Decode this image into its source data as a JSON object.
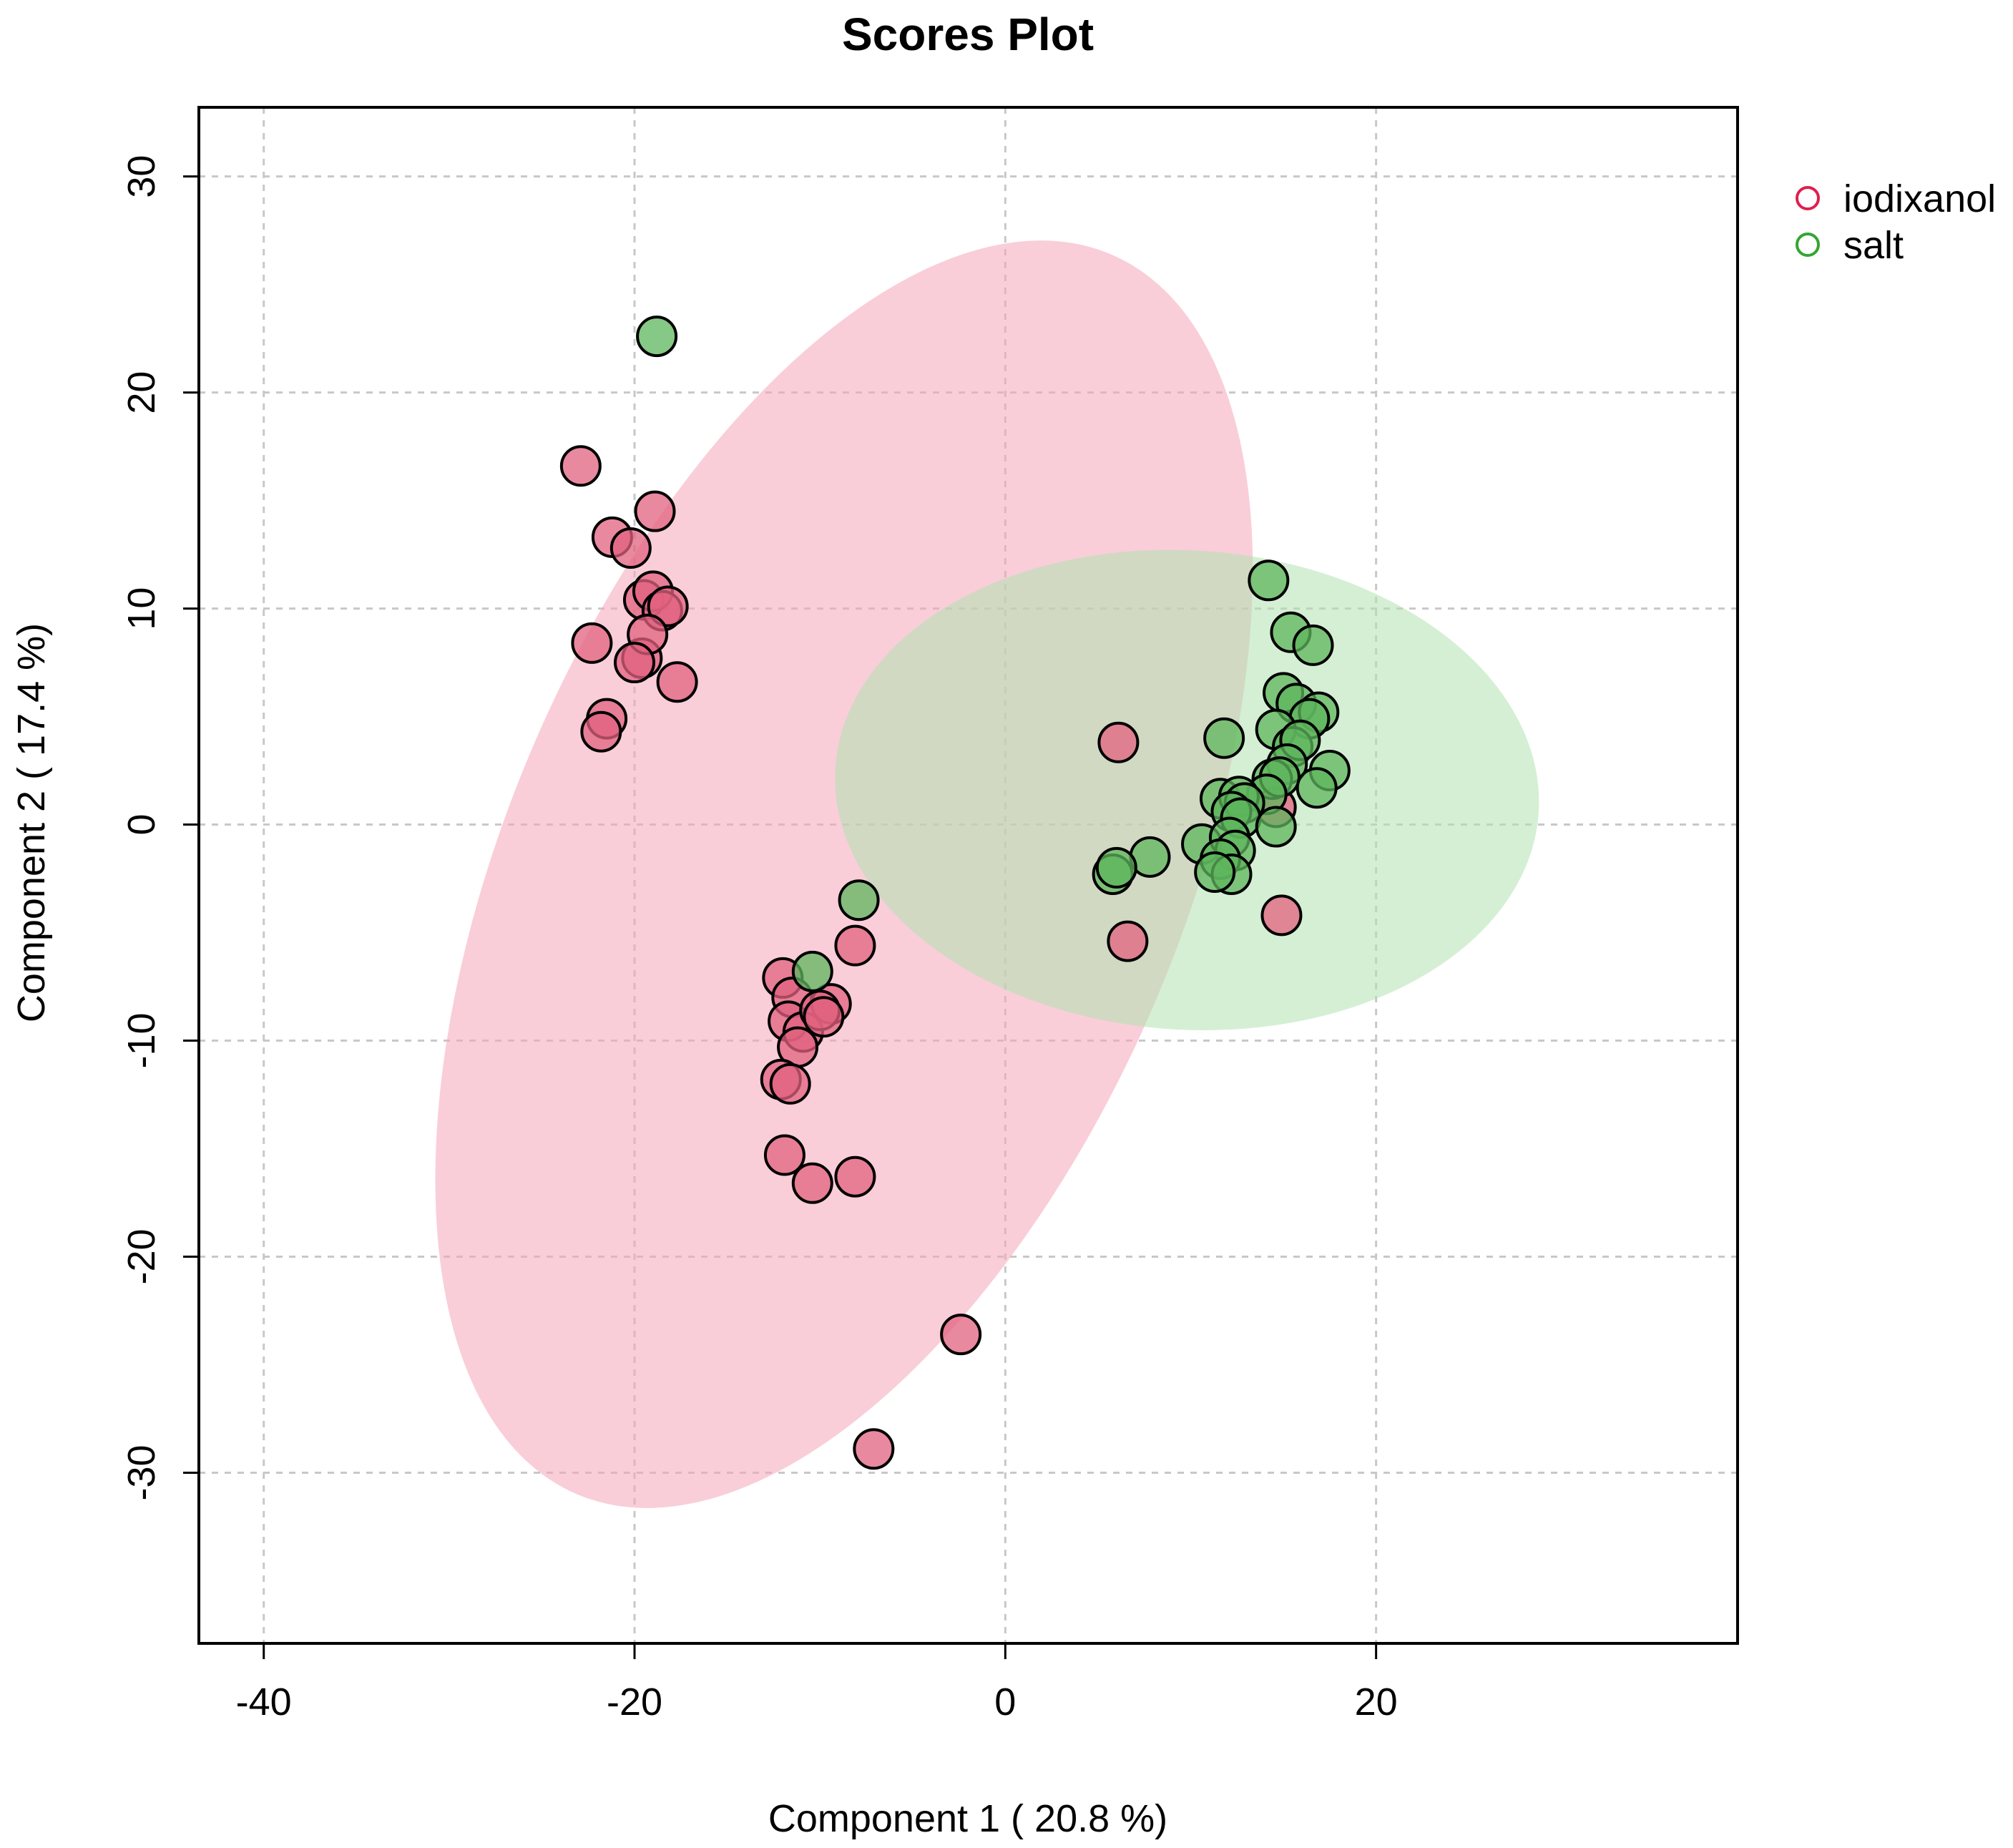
{
  "chart_data": {
    "type": "scatter",
    "title": "Scores Plot",
    "xlabel": "Component 1 ( 20.8 %)",
    "ylabel": "Component 2 ( 17.4 %)",
    "xlim": [
      -43.5,
      39.5
    ],
    "ylim": [
      -37.9,
      33.2
    ],
    "xticks": [
      -40,
      -20,
      0,
      20
    ],
    "yticks": [
      -30,
      -20,
      -10,
      0,
      10,
      20,
      30
    ],
    "grid": true,
    "legend_position": "top-right-outside",
    "series": [
      {
        "name": "iodixanol",
        "color": "#DF1F4F",
        "marker_fill": "#E1627F",
        "ellipse": {
          "center": [
            -8.7,
            -2.3
          ],
          "semi_axes": [
            32.2,
            17.6
          ],
          "angle_deg": 60.5,
          "fill": "#F4A6BA"
        },
        "points": [
          [
            -22.9,
            16.6
          ],
          [
            -21.2,
            13.3
          ],
          [
            -20.2,
            12.8
          ],
          [
            -18.9,
            14.5
          ],
          [
            -19.5,
            10.4
          ],
          [
            -19.0,
            10.8
          ],
          [
            -18.5,
            9.9
          ],
          [
            -18.2,
            10.1
          ],
          [
            -22.3,
            8.4
          ],
          [
            -19.6,
            7.7
          ],
          [
            -19.3,
            8.8
          ],
          [
            -20.0,
            7.5
          ],
          [
            -17.7,
            6.6
          ],
          [
            -21.5,
            4.9
          ],
          [
            -21.8,
            4.3
          ],
          [
            -12.0,
            -7.1
          ],
          [
            -11.5,
            -8.0
          ],
          [
            -11.7,
            -9.1
          ],
          [
            -10.9,
            -9.6
          ],
          [
            -11.2,
            -10.3
          ],
          [
            -9.4,
            -8.3
          ],
          [
            -10.0,
            -8.6
          ],
          [
            -9.8,
            -8.9
          ],
          [
            -8.1,
            -5.6
          ],
          [
            -12.1,
            -11.8
          ],
          [
            -11.6,
            -12.0
          ],
          [
            -11.9,
            -15.3
          ],
          [
            -10.4,
            -16.6
          ],
          [
            -8.1,
            -16.3
          ],
          [
            -2.4,
            -23.6
          ],
          [
            -7.1,
            -28.9
          ],
          [
            6.1,
            3.8
          ],
          [
            6.6,
            -5.4
          ],
          [
            14.9,
            -4.2
          ],
          [
            14.6,
            0.8
          ]
        ]
      },
      {
        "name": "salt",
        "color": "#33A532",
        "marker_fill": "#5DB55C",
        "ellipse": {
          "center": [
            9.8,
            1.6
          ],
          "semi_axes": [
            19.0,
            11.1
          ],
          "angle_deg": -2.5,
          "fill": "#B2E2B1"
        },
        "points": [
          [
            -18.8,
            22.6
          ],
          [
            -7.9,
            -3.5
          ],
          [
            -10.4,
            -6.8
          ],
          [
            14.2,
            11.3
          ],
          [
            15.4,
            8.9
          ],
          [
            16.6,
            8.3
          ],
          [
            15.0,
            6.1
          ],
          [
            15.7,
            5.6
          ],
          [
            16.9,
            5.2
          ],
          [
            16.4,
            4.9
          ],
          [
            11.8,
            4.0
          ],
          [
            14.6,
            4.4
          ],
          [
            15.5,
            3.6
          ],
          [
            15.9,
            3.9
          ],
          [
            15.2,
            2.8
          ],
          [
            14.4,
            2.1
          ],
          [
            14.8,
            2.2
          ],
          [
            17.5,
            2.5
          ],
          [
            16.8,
            1.7
          ],
          [
            14.1,
            1.4
          ],
          [
            11.6,
            1.2
          ],
          [
            12.6,
            1.3
          ],
          [
            12.9,
            1.0
          ],
          [
            12.2,
            0.6
          ],
          [
            12.7,
            0.3
          ],
          [
            14.6,
            -0.1
          ],
          [
            10.6,
            -0.9
          ],
          [
            12.1,
            -0.6
          ],
          [
            12.4,
            -1.2
          ],
          [
            11.6,
            -1.6
          ],
          [
            12.2,
            -2.3
          ],
          [
            11.3,
            -2.2
          ],
          [
            7.8,
            -1.5
          ],
          [
            5.8,
            -2.3
          ],
          [
            6.0,
            -2.0
          ]
        ]
      }
    ]
  }
}
